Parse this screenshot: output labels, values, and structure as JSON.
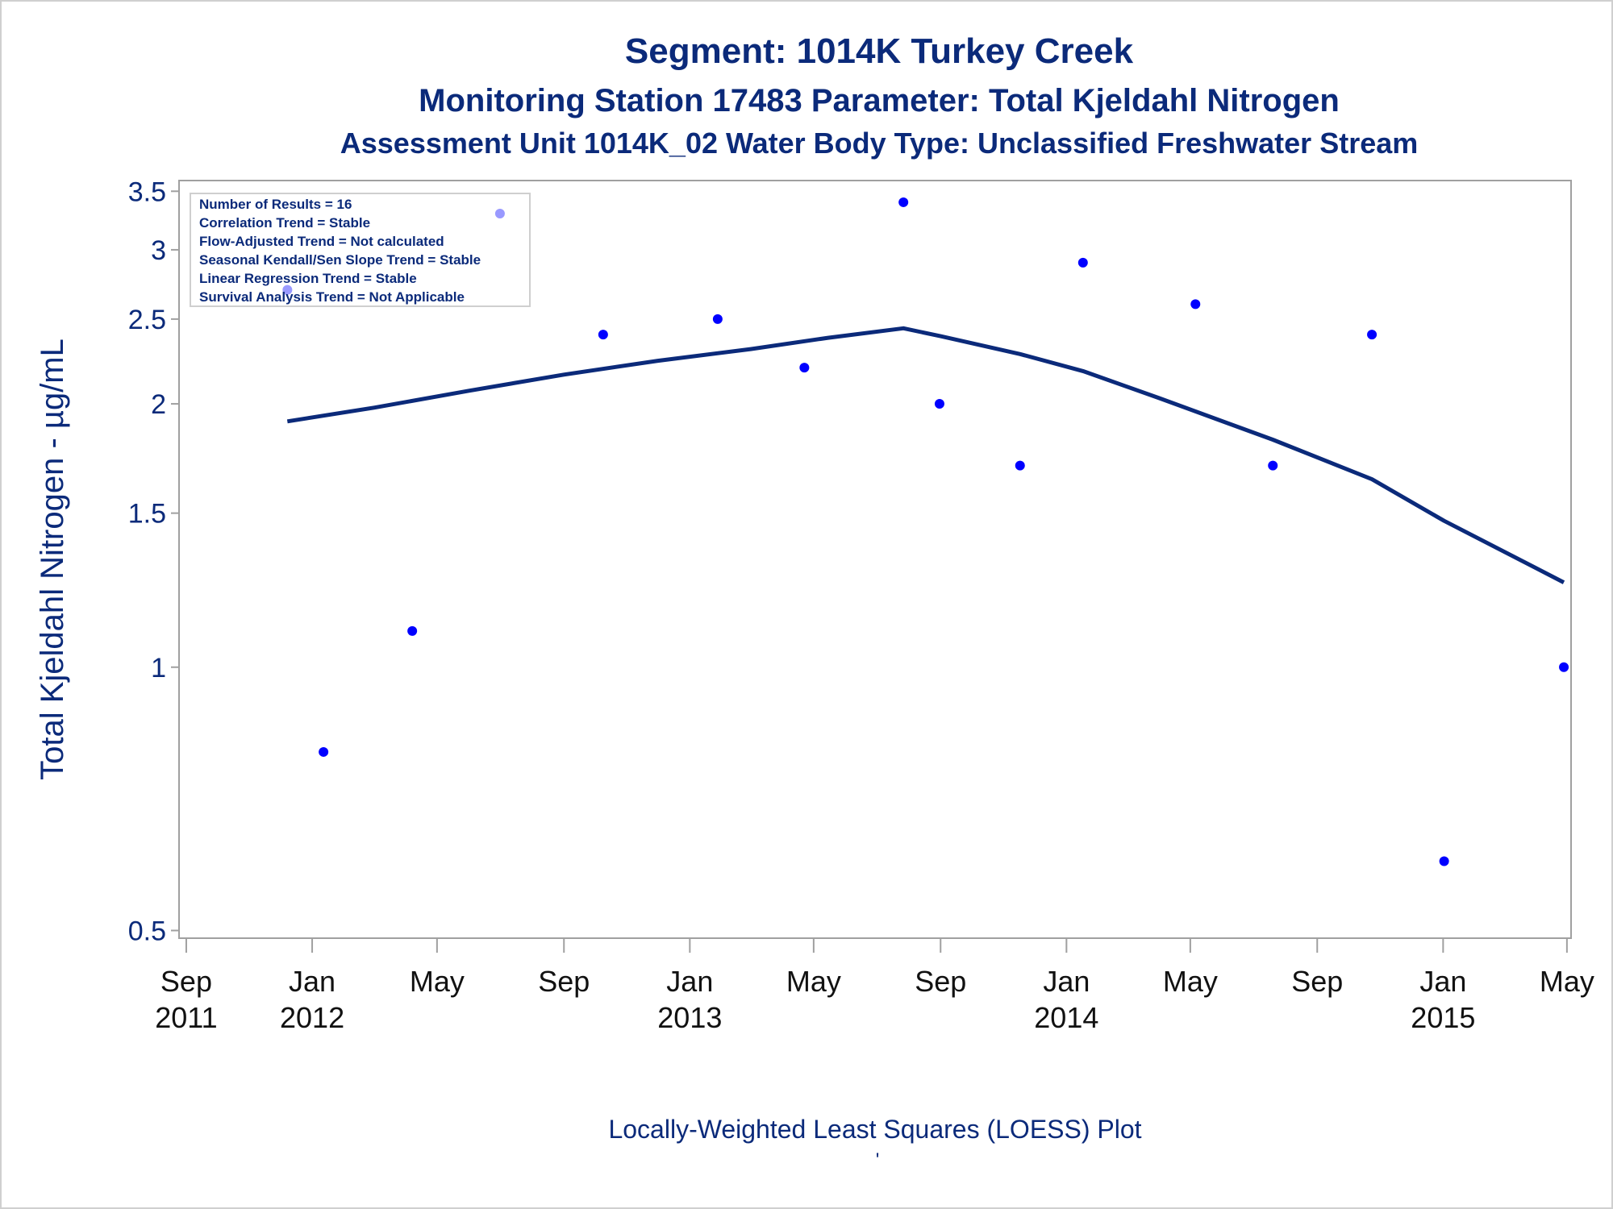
{
  "colors": {
    "text": "#0b2a7a",
    "tick_text_x": "#111111",
    "points": "#0000ff",
    "loess": "#0b2a7a",
    "frame": "#a0a0a0",
    "outer_border": "#cfcfcf"
  },
  "chart_data": {
    "type": "scatter",
    "title_lines": [
      "Segment: 1014K  Turkey Creek",
      "Monitoring Station 17483 Parameter: Total Kjeldahl Nitrogen",
      "Assessment Unit 1014K_02   Water Body Type: Unclassified Freshwater Stream"
    ],
    "ylabel": "Total Kjeldahl Nitrogen -  µg/mL",
    "xlabel": "",
    "footnote": "Locally-Weighted Least Squares (LOESS) Plot",
    "footnote_mark": "'",
    "y_scale": "log",
    "ylim": [
      0.49,
      3.6
    ],
    "y_ticks": [
      0.5,
      1,
      1.5,
      2,
      2.5,
      3,
      3.5
    ],
    "y_tick_labels": [
      "0.5",
      "1",
      "1.5",
      "2",
      "2.5",
      "3",
      "3.5"
    ],
    "xlim": [
      "2011-08-25",
      "2015-05-05"
    ],
    "x_ticks": [
      "2011-09-01",
      "2012-01-01",
      "2012-05-01",
      "2012-09-01",
      "2013-01-01",
      "2013-05-01",
      "2013-09-01",
      "2014-01-01",
      "2014-05-01",
      "2014-09-01",
      "2015-01-01",
      "2015-05-01"
    ],
    "x_tick_labels": [
      [
        "Sep",
        "2011"
      ],
      [
        "Jan",
        "2012"
      ],
      [
        "May",
        ""
      ],
      [
        "Sep",
        ""
      ],
      [
        "Jan",
        "2013"
      ],
      [
        "May",
        ""
      ],
      [
        "Sep",
        ""
      ],
      [
        "Jan",
        "2014"
      ],
      [
        "May",
        ""
      ],
      [
        "Sep",
        ""
      ],
      [
        "Jan",
        "2015"
      ],
      [
        "May",
        ""
      ]
    ],
    "grid": false,
    "legend_position": "top-left",
    "stats_box": [
      "Number of Results = 16",
      "Correlation Trend = Stable",
      "Flow-Adjusted Trend = Not calculated",
      "Seasonal Kendall/Sen Slope Trend = Stable",
      "Linear Regression Trend = Stable",
      "Survival Analysis Trend = Not Applicable"
    ],
    "series": [
      {
        "kind": "scatter",
        "points": [
          {
            "date": "2011-12-08",
            "value": 2.7
          },
          {
            "date": "2012-01-12",
            "value": 0.8
          },
          {
            "date": "2012-04-07",
            "value": 1.1
          },
          {
            "date": "2012-07-01",
            "value": 3.3
          },
          {
            "date": "2012-10-09",
            "value": 2.4
          },
          {
            "date": "2013-01-28",
            "value": 2.5
          },
          {
            "date": "2013-04-22",
            "value": 2.2
          },
          {
            "date": "2013-07-27",
            "value": 3.4
          },
          {
            "date": "2013-08-31",
            "value": 2.0
          },
          {
            "date": "2013-11-17",
            "value": 1.7
          },
          {
            "date": "2014-01-17",
            "value": 2.9
          },
          {
            "date": "2014-05-06",
            "value": 2.6
          },
          {
            "date": "2014-07-20",
            "value": 1.7
          },
          {
            "date": "2014-10-24",
            "value": 2.4
          },
          {
            "date": "2015-01-02",
            "value": 0.6
          },
          {
            "date": "2015-04-28",
            "value": 1.0
          }
        ]
      },
      {
        "kind": "line",
        "points": [
          {
            "date": "2011-12-08",
            "value": 1.91
          },
          {
            "date": "2012-03-01",
            "value": 1.98
          },
          {
            "date": "2012-06-01",
            "value": 2.07
          },
          {
            "date": "2012-09-01",
            "value": 2.16
          },
          {
            "date": "2012-12-01",
            "value": 2.24
          },
          {
            "date": "2013-03-01",
            "value": 2.31
          },
          {
            "date": "2013-05-15",
            "value": 2.38
          },
          {
            "date": "2013-07-27",
            "value": 2.44
          },
          {
            "date": "2013-09-01",
            "value": 2.39
          },
          {
            "date": "2013-11-17",
            "value": 2.28
          },
          {
            "date": "2014-01-17",
            "value": 2.18
          },
          {
            "date": "2014-04-01",
            "value": 2.03
          },
          {
            "date": "2014-07-20",
            "value": 1.82
          },
          {
            "date": "2014-10-24",
            "value": 1.64
          },
          {
            "date": "2015-01-02",
            "value": 1.47
          },
          {
            "date": "2015-04-28",
            "value": 1.25
          }
        ]
      }
    ]
  }
}
